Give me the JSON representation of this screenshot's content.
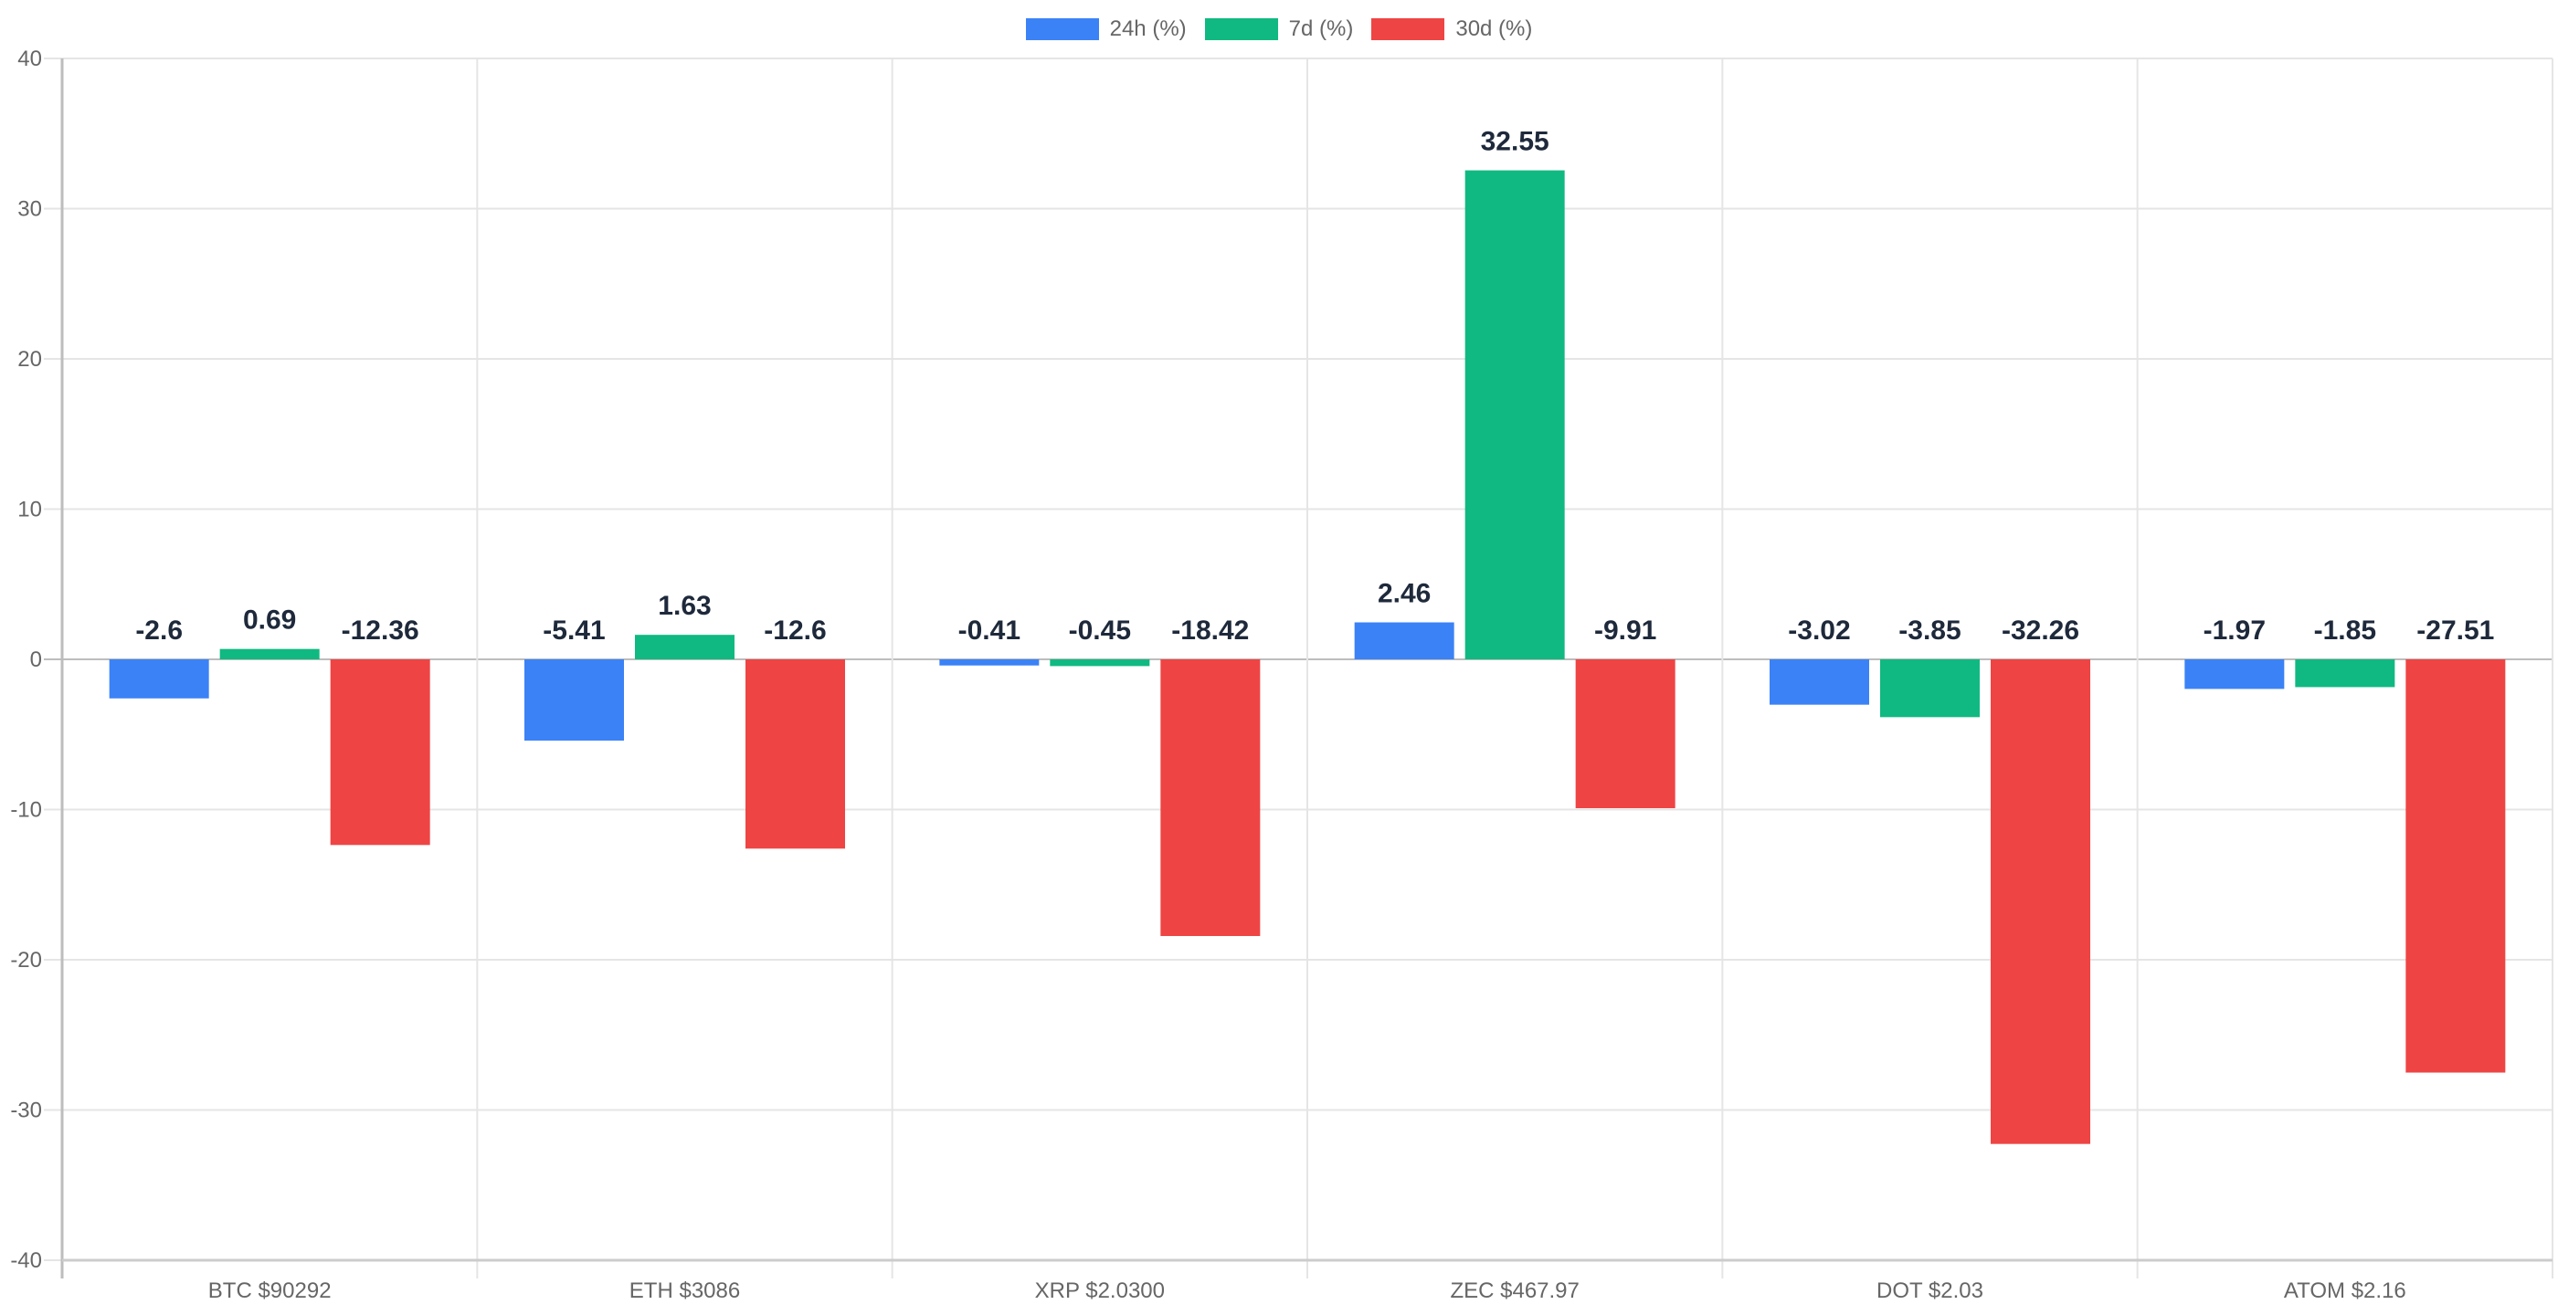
{
  "legend": {
    "items": [
      {
        "label": "24h (%)",
        "color": "#3b82f6"
      },
      {
        "label": "7d (%)",
        "color": "#10b981"
      },
      {
        "label": "30d (%)",
        "color": "#ef4444"
      }
    ]
  },
  "chart_data": {
    "type": "bar",
    "title": "",
    "xlabel": "",
    "ylabel": "",
    "ylim": [
      -40,
      40
    ],
    "yticks": [
      40,
      30,
      20,
      10,
      0,
      -10,
      -20,
      -30,
      -40
    ],
    "grid": true,
    "legend_position": "top",
    "categories": [
      "BTC  $90292",
      "ETH  $3086",
      "XRP  $2.0300",
      "ZEC  $467.97",
      "DOT  $2.03",
      "ATOM $2.16"
    ],
    "series": [
      {
        "name": "24h (%)",
        "color": "#3b82f6",
        "values": [
          -2.6,
          -5.41,
          -0.41,
          2.46,
          -3.02,
          -1.97
        ]
      },
      {
        "name": "7d (%)",
        "color": "#10b981",
        "values": [
          0.69,
          1.63,
          -0.45,
          32.55,
          -3.85,
          -1.85
        ]
      },
      {
        "name": "30d (%)",
        "color": "#ef4444",
        "values": [
          -12.36,
          -12.6,
          -18.42,
          -9.91,
          -32.26,
          -27.51
        ]
      }
    ],
    "data_labels": true
  }
}
